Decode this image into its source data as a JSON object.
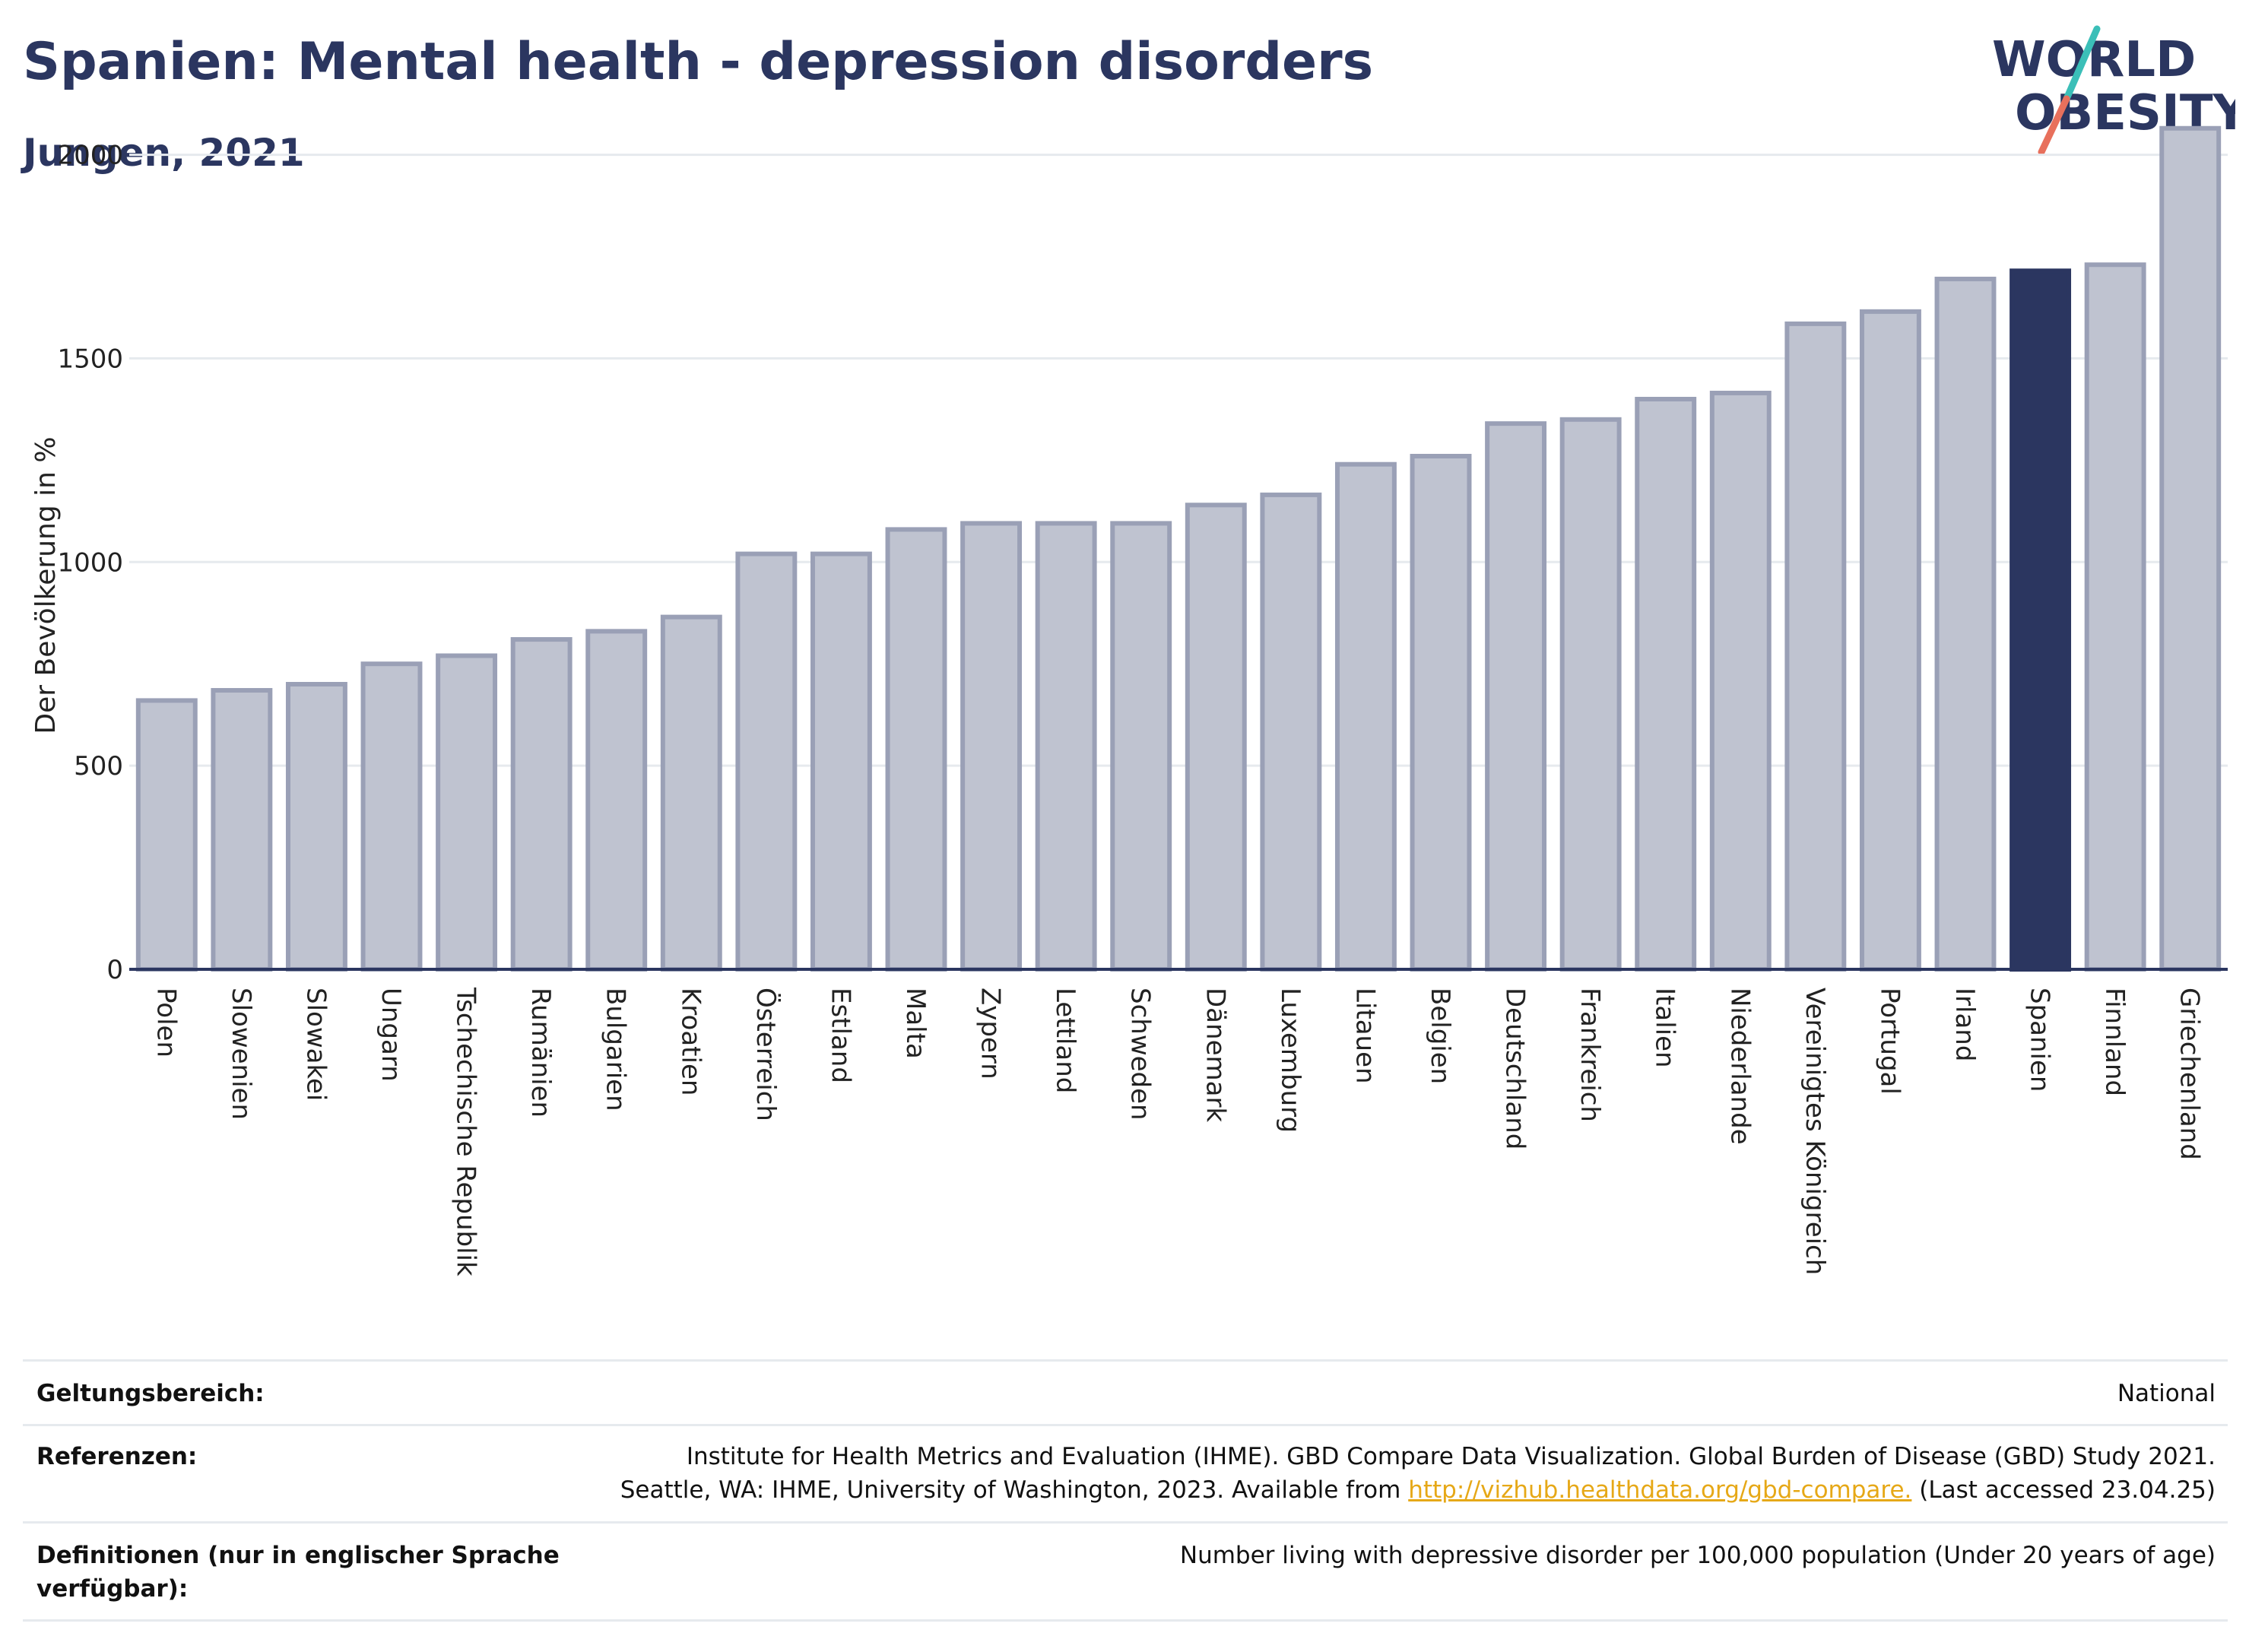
{
  "header": {
    "title": "Spanien: Mental health - depression disorders",
    "subtitle": "Jungen, 2021"
  },
  "logo": {
    "line1": "WORLD",
    "line2": "OBESITY",
    "colors": {
      "text": "#2b3660",
      "slash_top": "#3bbfb8",
      "slash_bottom": "#e8705c"
    }
  },
  "chart_data": {
    "type": "bar",
    "ylabel": "Der Bevölkerung in %",
    "xlabel": "",
    "ylim": [
      0,
      2100
    ],
    "yticks": [
      0,
      500,
      1000,
      1500,
      2000
    ],
    "grid": true,
    "highlight": "Spanien",
    "colors": {
      "bar": "#bfc3d0",
      "bar_border": "#9aa0b6",
      "highlight": "#2b3660",
      "grid": "#e6eaee"
    },
    "categories": [
      "Polen",
      "Slowenien",
      "Slowakei",
      "Ungarn",
      "Tschechische Republik",
      "Rumänien",
      "Bulgarien",
      "Kroatien",
      "Österreich",
      "Estland",
      "Malta",
      "Zypern",
      "Lettland",
      "Schweden",
      "Dänemark",
      "Luxemburg",
      "Litauen",
      "Belgien",
      "Deutschland",
      "Frankreich",
      "Italien",
      "Niederlande",
      "Vereinigtes Königreich",
      "Portugal",
      "Irland",
      "Spanien",
      "Finnland",
      "Griechenland"
    ],
    "values": [
      660,
      685,
      700,
      750,
      770,
      810,
      830,
      865,
      1020,
      1020,
      1080,
      1095,
      1095,
      1095,
      1140,
      1165,
      1240,
      1260,
      1340,
      1350,
      1400,
      1415,
      1585,
      1615,
      1695,
      1715,
      1730,
      2065
    ]
  },
  "info": {
    "scope_label": "Geltungsbereich:",
    "scope_value": "National",
    "refs_label": "Referenzen:",
    "refs_line1": "Institute for Health Metrics and Evaluation (IHME). GBD Compare Data Visualization. Global Burden of Disease (GBD) Study 2021.",
    "refs_line2_pre": "Seattle, WA: IHME, University of Washington, 2023. Available from",
    "refs_link": "http://vizhub.healthdata.org/gbd-compare.",
    "refs_line2_post": "(Last accessed 23.04.25)",
    "def_label": "Definitionen (nur in englischer Sprache verfügbar):",
    "def_value": "Number living with depressive disorder per 100,000 population (Under 20 years of age)"
  }
}
